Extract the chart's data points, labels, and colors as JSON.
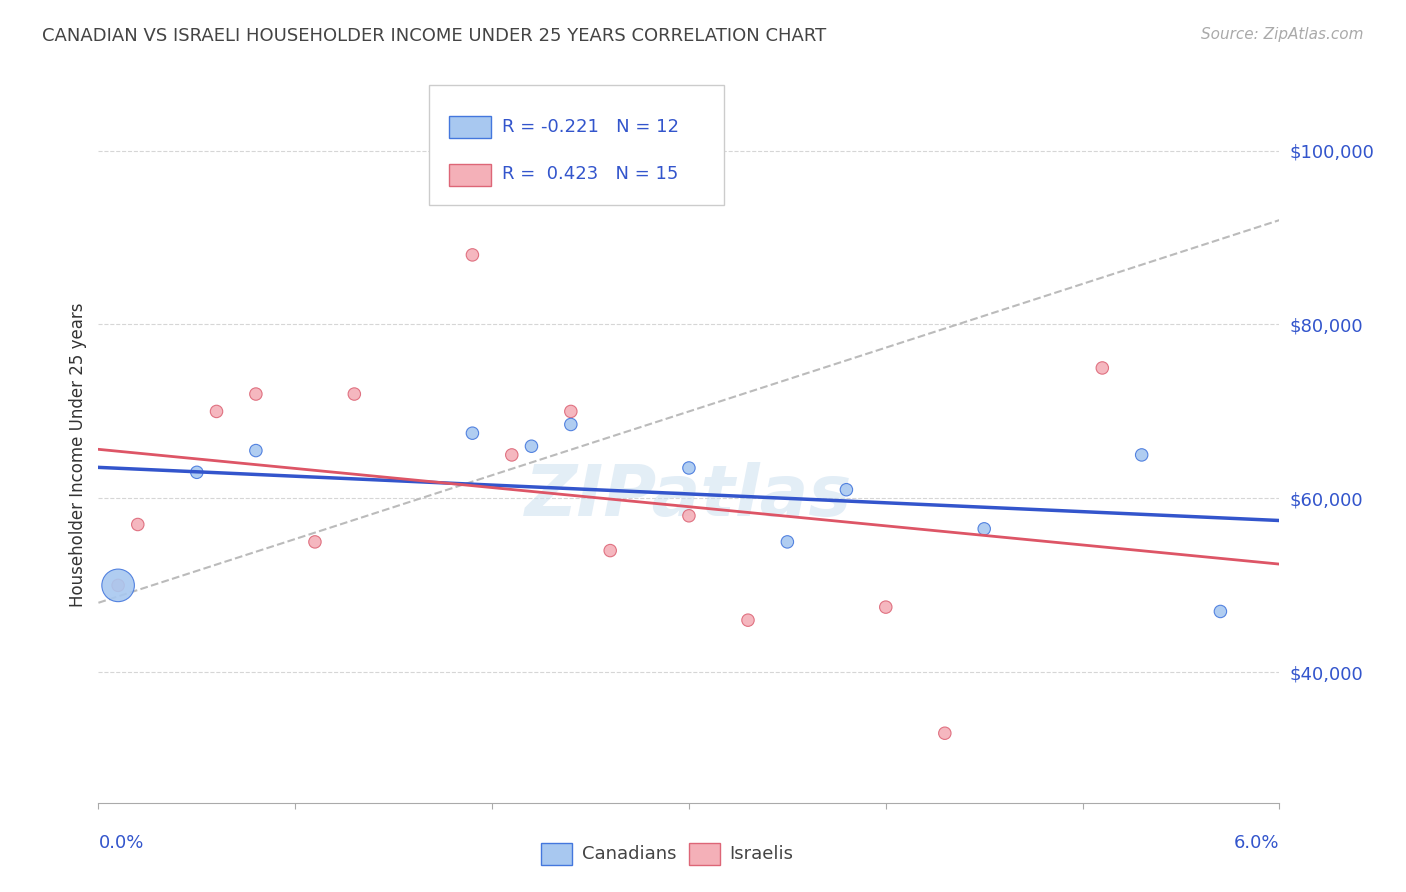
{
  "title": "CANADIAN VS ISRAELI HOUSEHOLDER INCOME UNDER 25 YEARS CORRELATION CHART",
  "source": "Source: ZipAtlas.com",
  "ylabel": "Householder Income Under 25 years",
  "xlim": [
    0.0,
    0.06
  ],
  "ylim": [
    25000,
    105000
  ],
  "yticks": [
    40000,
    60000,
    80000,
    100000
  ],
  "ytick_labels": [
    "$40,000",
    "$60,000",
    "$80,000",
    "$100,000"
  ],
  "canadian_color": "#a8c8f0",
  "israeli_color": "#f4b0b8",
  "canadian_edge_color": "#4477dd",
  "israeli_edge_color": "#dd6677",
  "canadian_line_color": "#3355cc",
  "israeli_line_color": "#dd5566",
  "gray_dash_color": "#bbbbbb",
  "R_canadian": -0.221,
  "N_canadian": 12,
  "R_israeli": 0.423,
  "N_israeli": 15,
  "canadians_x": [
    0.001,
    0.005,
    0.008,
    0.019,
    0.022,
    0.024,
    0.03,
    0.035,
    0.038,
    0.045,
    0.053,
    0.057
  ],
  "canadians_y": [
    50000,
    63000,
    65500,
    67500,
    66000,
    68500,
    63500,
    55000,
    61000,
    56500,
    65000,
    47000
  ],
  "canadians_size": [
    550,
    80,
    80,
    80,
    80,
    80,
    80,
    80,
    80,
    80,
    80,
    80
  ],
  "israelis_x": [
    0.001,
    0.002,
    0.006,
    0.008,
    0.011,
    0.013,
    0.019,
    0.021,
    0.024,
    0.026,
    0.03,
    0.033,
    0.04,
    0.043,
    0.051
  ],
  "israelis_y": [
    50000,
    57000,
    70000,
    72000,
    55000,
    72000,
    88000,
    65000,
    70000,
    54000,
    58000,
    46000,
    47500,
    33000,
    75000
  ],
  "israelis_size": [
    80,
    80,
    80,
    80,
    80,
    80,
    80,
    80,
    80,
    80,
    80,
    80,
    80,
    80,
    80
  ],
  "watermark": "ZipAtlas",
  "background_color": "#ffffff",
  "grid_color": "#cccccc"
}
